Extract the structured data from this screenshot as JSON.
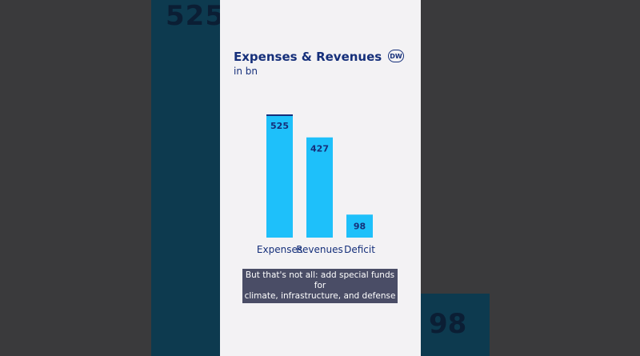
{
  "background": {
    "left_number": "525",
    "right_number": "98"
  },
  "header": {
    "logo_text": "DW"
  },
  "caption": {
    "line1": "But that's not all: add special funds for",
    "line2": "climate, infrastructure, and defense"
  },
  "colors": {
    "bar": "#1ec0fa",
    "bar_top": "#152f7a",
    "text": "#152f7a"
  },
  "chart_data": {
    "type": "bar",
    "title": "Expenses & Revenues",
    "subtitle": "in bn",
    "categories": [
      "Expenses",
      "Revenues",
      "Deficit"
    ],
    "values": [
      525,
      427,
      98
    ],
    "data_labels": [
      "525",
      "427",
      "98"
    ],
    "ylim": [
      0,
      525
    ],
    "grid": false,
    "xlabel": "",
    "ylabel": ""
  }
}
